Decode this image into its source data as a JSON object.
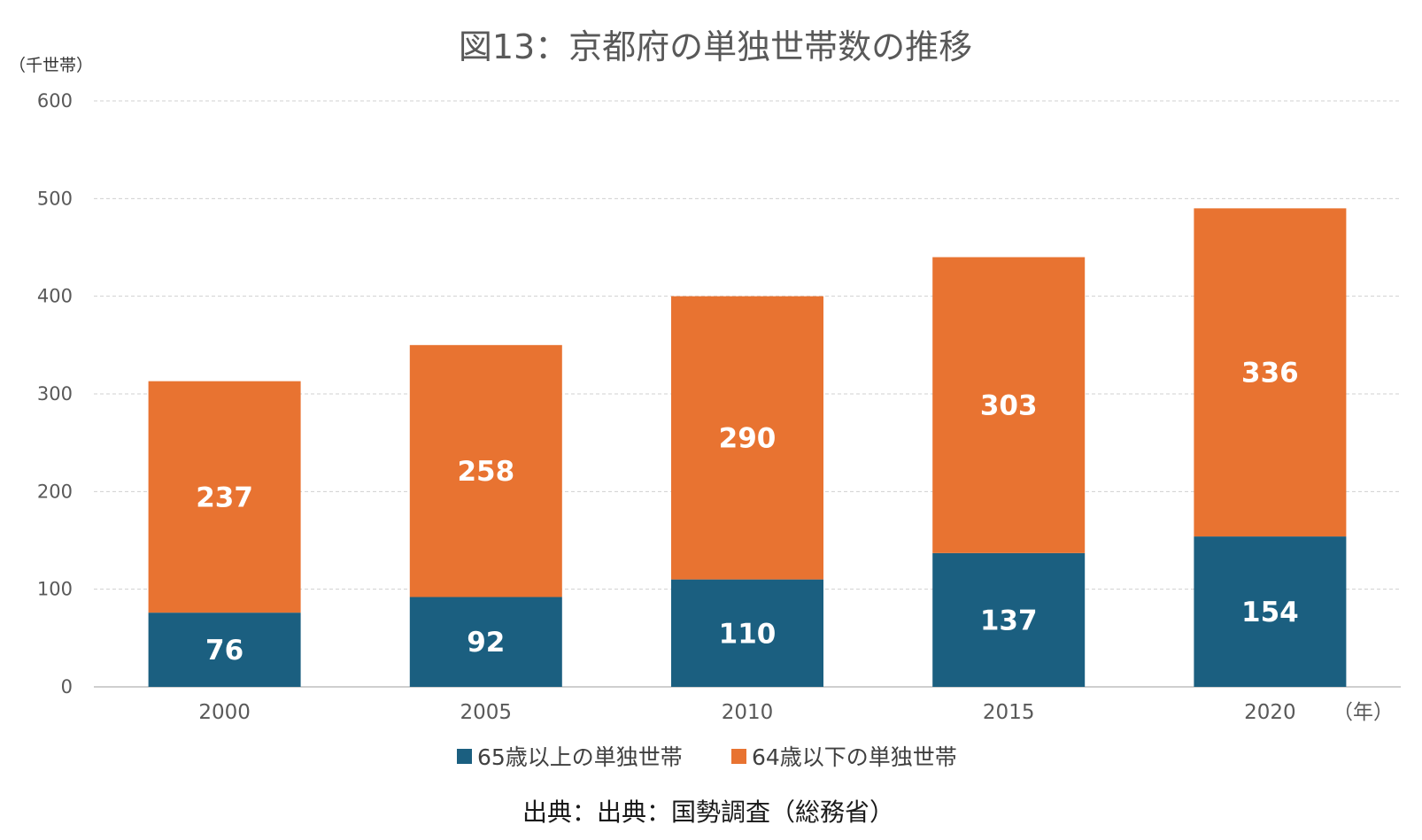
{
  "chart_data": {
    "type": "bar",
    "stacked": true,
    "title": "図13：京都府の単独世帯数の推移",
    "y_unit_label": "（千世帯）",
    "x_unit_label": "（年）",
    "categories": [
      "2000",
      "2005",
      "2010",
      "2015",
      "2020"
    ],
    "series": [
      {
        "name": "65歳以上の単独世帯",
        "values": [
          76,
          92,
          110,
          137,
          154
        ],
        "color": "#1b5f80"
      },
      {
        "name": "64歳以下の単独世帯",
        "values": [
          237,
          258,
          290,
          303,
          336
        ],
        "color": "#e87331"
      }
    ],
    "ylim": [
      0,
      600
    ],
    "yticks": [
      0,
      100,
      200,
      300,
      400,
      500,
      600
    ],
    "grid": true,
    "legend_position": "bottom",
    "source": "出典：出典：国勢調査（総務省）"
  }
}
